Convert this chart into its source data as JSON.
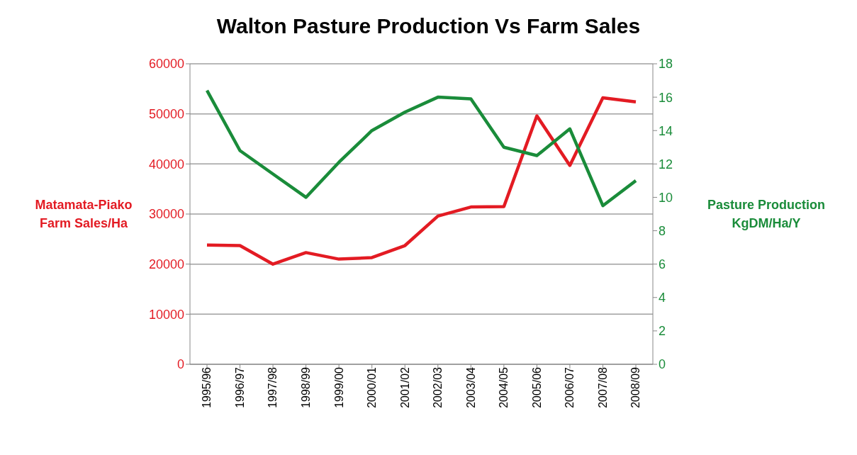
{
  "chart_data": {
    "type": "line",
    "title": "Walton Pasture Production Vs Farm Sales",
    "categories": [
      "1995/96",
      "1996/97",
      "1997/98",
      "1998/99",
      "1999/00",
      "2000/01",
      "2001/02",
      "2002/03",
      "2003/04",
      "2004/05",
      "2005/06",
      "2006/07",
      "2007/08",
      "2008/09"
    ],
    "series": [
      {
        "color": "#e31b23",
        "values": [
          23800,
          23700,
          20000,
          22300,
          21000,
          21300,
          23700,
          29600,
          31400,
          31500,
          49600,
          39700,
          53200,
          52400
        ]
      },
      {
        "color": "#1a8c3a",
        "axis": "y2",
        "values": [
          16.4,
          12.8,
          11.4,
          10.0,
          12.1,
          14.0,
          15.1,
          16.0,
          15.9,
          13.0,
          12.5,
          14.1,
          9.5,
          11.0
        ]
      }
    ],
    "ylabel": "Matamata-Piako Farm Sales/Ha",
    "y2label": "Pasture Production KgDM/Ha/Y",
    "ylim": [
      0,
      60000
    ],
    "yticks": [
      0,
      10000,
      20000,
      30000,
      40000,
      50000,
      60000
    ],
    "y2lim": [
      0,
      18
    ],
    "y2ticks": [
      0,
      2,
      4,
      6,
      8,
      10,
      12,
      14,
      16,
      18
    ],
    "grid": "y"
  }
}
